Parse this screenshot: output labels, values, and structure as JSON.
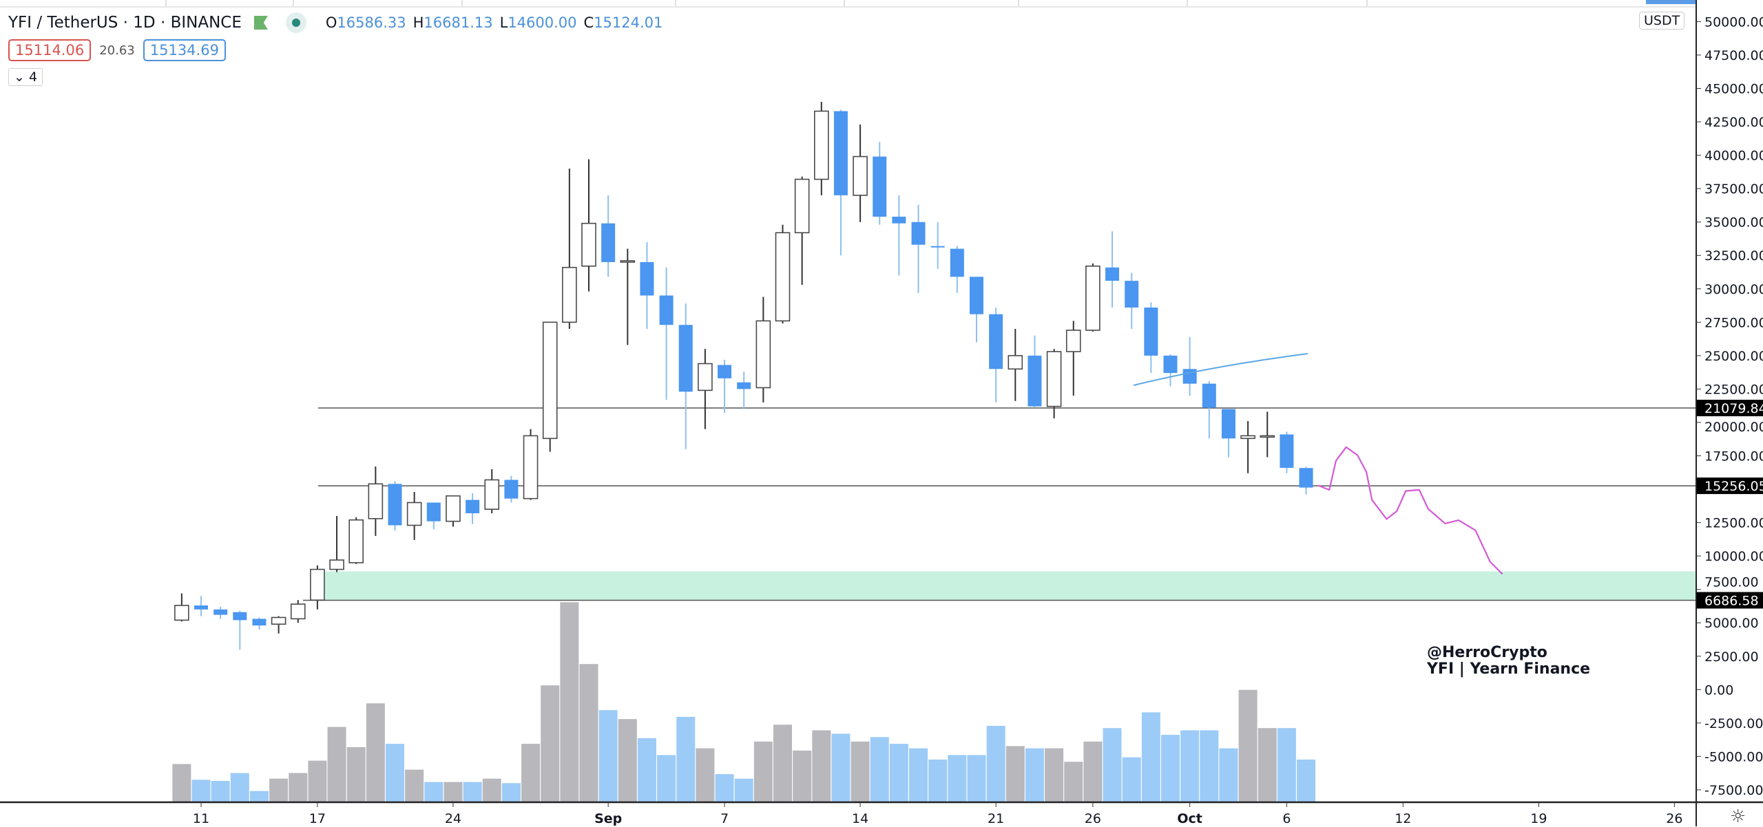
{
  "legend": {
    "symbol": "YFI / TetherUS · 1D · BINANCE",
    "open_label": "O",
    "open": "16586.33",
    "high_label": "H",
    "high": "16681.13",
    "low_label": "L",
    "low": "14600.00",
    "close_label": "C",
    "close": "15124.01",
    "bid": "15114.06",
    "spread": "20.63",
    "ask": "15134.69",
    "indicators_toggle": "⌄ 4"
  },
  "axis": {
    "currency_button": "USDT",
    "ticks": [
      50000,
      47500,
      45000,
      42500,
      40000,
      37500,
      35000,
      32500,
      30000,
      27500,
      25000,
      22500,
      20000,
      17500,
      12500,
      10000,
      7500,
      5000,
      2500,
      0,
      -2500,
      -5000,
      -7500
    ],
    "decimals": 2,
    "price_labels": [
      {
        "value": 21079.84,
        "text": "21079.84"
      },
      {
        "value": 15256.05,
        "text": "15256.05"
      },
      {
        "value": 6686.58,
        "text": "6686.58"
      }
    ],
    "settings_icon": "gear-icon"
  },
  "xaxis": {
    "start_date": "Aug 10",
    "labels": [
      {
        "text": "11",
        "day": 1
      },
      {
        "text": "17",
        "day": 7
      },
      {
        "text": "24",
        "day": 14
      },
      {
        "text": "Sep",
        "day": 22
      },
      {
        "text": "7",
        "day": 28
      },
      {
        "text": "14",
        "day": 35
      },
      {
        "text": "21",
        "day": 42
      },
      {
        "text": "26",
        "day": 47
      },
      {
        "text": "Oct",
        "day": 52
      },
      {
        "text": "6",
        "day": 57
      },
      {
        "text": "12",
        "day": 63
      },
      {
        "text": "19",
        "day": 70
      },
      {
        "text": "26",
        "day": 77
      }
    ]
  },
  "watermark": {
    "line1": "@HerroCrypto",
    "line2": "YFI | Yearn Finance"
  },
  "colors": {
    "up_border": "#4a4a4a",
    "up_fill": "#ffffff",
    "down": "#4a96f0",
    "vol_up": "#b7b7bc",
    "vol_down": "#9ccbf7",
    "zone": "#c8f2df",
    "line": "#555555",
    "trend": "#5aa7e6",
    "projection": "#d35ad6"
  },
  "zone": {
    "low": 6686.58,
    "high": 8850
  },
  "chart_data": {
    "type": "candlestick",
    "title": "YFI / TetherUS · 1D · BINANCE",
    "ohlc": [
      [
        5200,
        7200,
        5100,
        6300
      ],
      [
        6300,
        7000,
        5500,
        6000
      ],
      [
        6000,
        6200,
        5300,
        5600
      ],
      [
        5800,
        5900,
        3000,
        5200
      ],
      [
        5300,
        5400,
        4500,
        4800
      ],
      [
        4900,
        5500,
        4200,
        5400
      ],
      [
        5300,
        6700,
        5000,
        6400
      ],
      [
        6700,
        9300,
        6000,
        9000
      ],
      [
        9000,
        13000,
        8800,
        9700
      ],
      [
        9500,
        12900,
        9400,
        12700
      ],
      [
        12800,
        16700,
        11500,
        15400
      ],
      [
        15400,
        15600,
        11900,
        12300
      ],
      [
        12300,
        14800,
        11200,
        14000
      ],
      [
        14000,
        14000,
        12000,
        12600
      ],
      [
        12600,
        14500,
        12200,
        14500
      ],
      [
        14200,
        14700,
        12400,
        13200
      ],
      [
        13500,
        16500,
        13200,
        15700
      ],
      [
        15700,
        16000,
        14000,
        14300
      ],
      [
        14300,
        19500,
        14200,
        19000
      ],
      [
        18800,
        27500,
        17800,
        27500
      ],
      [
        27500,
        39000,
        27000,
        31600
      ],
      [
        31700,
        39700,
        29800,
        34900
      ],
      [
        34900,
        37000,
        30900,
        32000
      ],
      [
        32000,
        33000,
        25800,
        32100
      ],
      [
        32000,
        33500,
        27000,
        29500
      ],
      [
        29500,
        31600,
        21700,
        27300
      ],
      [
        27300,
        28900,
        18000,
        22300
      ],
      [
        22400,
        25500,
        19500,
        24400
      ],
      [
        24300,
        24700,
        20700,
        23300
      ],
      [
        23000,
        23800,
        21000,
        22500
      ],
      [
        22600,
        29400,
        21500,
        27600
      ],
      [
        27600,
        34800,
        27400,
        34200
      ],
      [
        34200,
        38400,
        30300,
        38200
      ],
      [
        38200,
        44000,
        37000,
        43300
      ],
      [
        43300,
        43400,
        32500,
        37000
      ],
      [
        37000,
        42300,
        35000,
        39900
      ],
      [
        39900,
        41000,
        34800,
        35400
      ],
      [
        35400,
        37000,
        31000,
        34900
      ],
      [
        35000,
        36300,
        29700,
        33300
      ],
      [
        33200,
        35000,
        31500,
        33100
      ],
      [
        33000,
        33200,
        29700,
        30900
      ],
      [
        30900,
        30900,
        26000,
        28100
      ],
      [
        28100,
        28600,
        21500,
        24000
      ],
      [
        24000,
        27000,
        21600,
        25000
      ],
      [
        25000,
        26500,
        21100,
        21200
      ],
      [
        21200,
        25500,
        20300,
        25300
      ],
      [
        25300,
        27600,
        22000,
        26900
      ],
      [
        26900,
        31900,
        26800,
        31700
      ],
      [
        31600,
        34300,
        28600,
        30600
      ],
      [
        30600,
        31200,
        27000,
        28600
      ],
      [
        28600,
        29000,
        23700,
        25000
      ],
      [
        25000,
        25100,
        22700,
        23700
      ],
      [
        24000,
        26400,
        22000,
        22900
      ],
      [
        22900,
        23100,
        18800,
        21100
      ],
      [
        21000,
        21000,
        17400,
        18800
      ],
      [
        18800,
        20100,
        16200,
        19000
      ],
      [
        19000,
        20800,
        17400,
        19000
      ],
      [
        19100,
        19300,
        16200,
        16600
      ],
      [
        16586.33,
        16681.13,
        14600,
        15124.01
      ]
    ],
    "volume_relative": [
      34,
      20,
      19,
      26,
      10,
      21,
      26,
      37,
      67,
      49,
      88,
      52,
      29,
      18,
      18,
      18,
      21,
      17,
      52,
      104,
      178,
      123,
      82,
      74,
      57,
      42,
      76,
      48,
      25,
      21,
      54,
      69,
      46,
      64,
      61,
      54,
      58,
      52,
      48,
      38,
      42,
      42,
      68,
      50,
      48,
      48,
      36,
      54,
      66,
      40,
      80,
      60,
      64,
      64,
      48,
      100,
      66,
      66,
      38
    ],
    "horizontal_levels": [
      21079.84,
      15256.05,
      6686.58
    ],
    "ylim": [
      -7500,
      50000
    ]
  }
}
